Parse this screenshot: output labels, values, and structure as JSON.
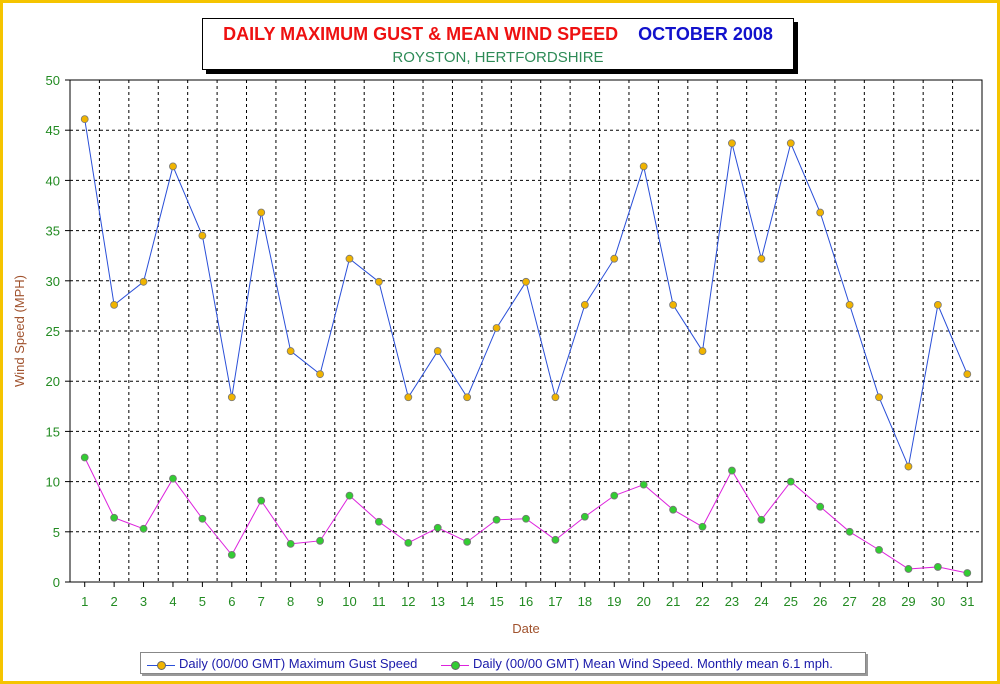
{
  "title": {
    "main": "DAILY MAXIMUM GUST & MEAN WIND SPEED",
    "period": "OCTOBER 2008",
    "subtitle": "ROYSTON, HERTFORDSHIRE"
  },
  "colors": {
    "frame": "#f5c400",
    "title_main": "#ee1111",
    "title_period": "#1111cc",
    "subtitle": "#2e8b57",
    "gust_line": "#2a4fd8",
    "gust_marker": "#f0b400",
    "mean_line": "#dd22dd",
    "mean_marker": "#33cc33",
    "tick_text": "#228b22",
    "axis_label": "#a0522d"
  },
  "chart_data": {
    "type": "line",
    "xlabel": "Date",
    "ylabel": "Wind Speed (MPH)",
    "ylim": [
      0,
      50
    ],
    "yticks": [
      0,
      5,
      10,
      15,
      20,
      25,
      30,
      35,
      40,
      45,
      50
    ],
    "grid": true,
    "legend_position": "bottom",
    "x": [
      1,
      2,
      3,
      4,
      5,
      6,
      7,
      8,
      9,
      10,
      11,
      12,
      13,
      14,
      15,
      16,
      17,
      18,
      19,
      20,
      21,
      22,
      23,
      24,
      25,
      26,
      27,
      28,
      29,
      30,
      31
    ],
    "series": [
      {
        "name": "Daily (00/00 GMT) Maximum Gust Speed",
        "values": [
          46.1,
          27.6,
          29.9,
          41.4,
          34.5,
          18.4,
          36.8,
          23.0,
          20.7,
          32.2,
          29.9,
          18.4,
          23.0,
          18.4,
          25.3,
          29.9,
          18.4,
          27.6,
          32.2,
          41.4,
          27.6,
          23.0,
          43.7,
          32.2,
          43.7,
          36.8,
          27.6,
          18.4,
          11.5,
          27.6,
          20.7
        ]
      },
      {
        "name": "Daily (00/00 GMT) Mean Wind Speed. Monthly mean 6.1 mph.",
        "values": [
          12.4,
          6.4,
          5.3,
          10.3,
          6.3,
          2.7,
          8.1,
          3.8,
          4.1,
          8.6,
          6.0,
          3.9,
          5.4,
          4.0,
          6.2,
          6.3,
          4.2,
          6.5,
          8.6,
          9.7,
          7.2,
          5.5,
          11.1,
          6.2,
          10.0,
          7.5,
          5.0,
          3.2,
          1.3,
          1.5,
          0.9
        ]
      }
    ]
  }
}
